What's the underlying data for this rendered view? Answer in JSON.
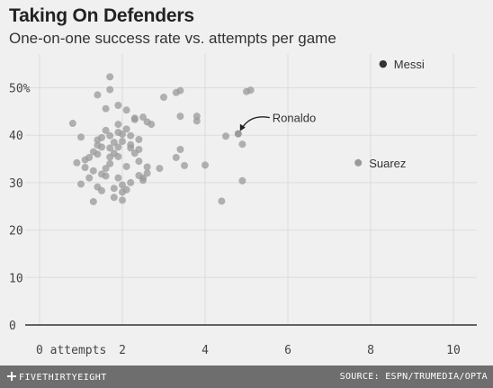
{
  "title": "Taking On Defenders",
  "subtitle": "One-on-one success rate vs. attempts per game",
  "footer": {
    "logo": "FIVETHIRTYEIGHT",
    "source": "SOURCE: ESPN/TRUMEDIA/OPTA"
  },
  "colors": {
    "background": "#f0f0f0",
    "grid": "#dcdcdc",
    "point": "#9a9a9a",
    "highlight": "#333333",
    "axis": "#333333"
  },
  "chart_data": {
    "type": "scatter",
    "title": "Taking On Defenders",
    "subtitle": "One-on-one success rate vs. attempts per game",
    "xlim": [
      0,
      10.5
    ],
    "ylim": [
      0,
      55
    ],
    "x_ticks": [
      0,
      2,
      4,
      6,
      8,
      10
    ],
    "x_tick_labels": [
      "0 attempts",
      "2",
      "4",
      "6",
      "8",
      "10"
    ],
    "y_ticks": [
      0,
      10,
      20,
      30,
      40,
      50
    ],
    "y_tick_labels": [
      "0",
      "10",
      "20",
      "30",
      "40",
      "50%"
    ],
    "grid": true,
    "highlighted": [
      {
        "label": "Messi",
        "x": 8.3,
        "y": 55
      },
      {
        "label": "Ronaldo",
        "x": 4.8,
        "y": 40.3
      },
      {
        "label": "Suarez",
        "x": 7.7,
        "y": 34.2
      }
    ],
    "points": [
      [
        1.7,
        52.3
      ],
      [
        1.7,
        49.6
      ],
      [
        1.4,
        48.5
      ],
      [
        2.1,
        45.3
      ],
      [
        2.3,
        43.3
      ],
      [
        2.6,
        42.8
      ],
      [
        0.8,
        42.5
      ],
      [
        1.6,
        41.0
      ],
      [
        1.9,
        42.3
      ],
      [
        2.0,
        40.2
      ],
      [
        1.4,
        39.0
      ],
      [
        1.0,
        39.6
      ],
      [
        1.8,
        38.5
      ],
      [
        2.2,
        38.0
      ],
      [
        1.5,
        37.5
      ],
      [
        2.4,
        37.0
      ],
      [
        1.3,
        36.5
      ],
      [
        1.1,
        34.8
      ],
      [
        1.9,
        35.5
      ],
      [
        2.6,
        33.3
      ],
      [
        1.7,
        34.0
      ],
      [
        2.1,
        33.4
      ],
      [
        1.3,
        32.5
      ],
      [
        1.6,
        31.4
      ],
      [
        1.9,
        31.0
      ],
      [
        2.5,
        31.0
      ],
      [
        1.0,
        29.7
      ],
      [
        1.4,
        29.1
      ],
      [
        1.8,
        28.8
      ],
      [
        2.0,
        26.3
      ],
      [
        1.3,
        26.0
      ],
      [
        2.1,
        28.5
      ],
      [
        2.4,
        31.5
      ],
      [
        2.9,
        33.0
      ],
      [
        3.0,
        48.0
      ],
      [
        3.3,
        49.0
      ],
      [
        3.4,
        49.4
      ],
      [
        3.4,
        44.0
      ],
      [
        3.8,
        44.0
      ],
      [
        3.8,
        43.0
      ],
      [
        3.4,
        37.0
      ],
      [
        3.3,
        35.3
      ],
      [
        3.5,
        33.6
      ],
      [
        4.0,
        33.7
      ],
      [
        4.5,
        39.8
      ],
      [
        4.4,
        26.1
      ],
      [
        4.9,
        38.1
      ],
      [
        4.9,
        30.4
      ],
      [
        5.0,
        49.2
      ],
      [
        5.1,
        49.5
      ],
      [
        0.9,
        34.2
      ],
      [
        1.2,
        31.0
      ],
      [
        1.5,
        28.3
      ],
      [
        1.8,
        26.9
      ],
      [
        2.0,
        28.0
      ],
      [
        2.2,
        30.0
      ],
      [
        1.6,
        45.6
      ],
      [
        1.9,
        46.3
      ],
      [
        2.3,
        43.6
      ],
      [
        2.5,
        43.8
      ],
      [
        2.7,
        42.3
      ],
      [
        2.1,
        41.3
      ],
      [
        1.5,
        39.5
      ],
      [
        1.7,
        37.3
      ],
      [
        1.9,
        37.5
      ],
      [
        2.0,
        38.7
      ],
      [
        2.2,
        39.9
      ],
      [
        2.4,
        39.1
      ],
      [
        2.3,
        36.2
      ],
      [
        1.7,
        35.4
      ],
      [
        1.6,
        33.0
      ],
      [
        1.2,
        35.3
      ],
      [
        1.4,
        37.9
      ],
      [
        1.8,
        36.2
      ],
      [
        2.6,
        32.0
      ],
      [
        2.5,
        30.5
      ],
      [
        2.0,
        29.5
      ],
      [
        1.5,
        31.8
      ],
      [
        1.1,
        33.2
      ],
      [
        1.9,
        40.6
      ],
      [
        1.4,
        36.0
      ],
      [
        2.4,
        34.5
      ],
      [
        1.7,
        39.9
      ],
      [
        2.2,
        37.3
      ]
    ]
  }
}
